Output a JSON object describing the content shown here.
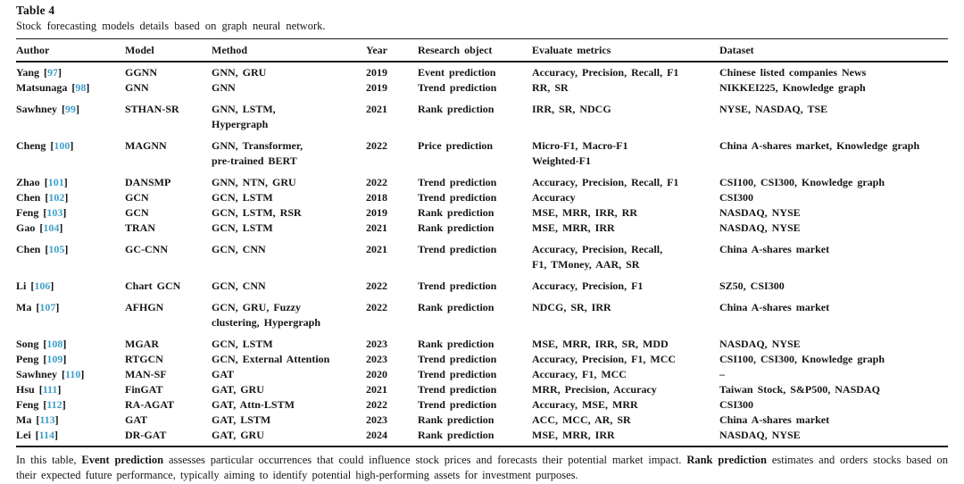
{
  "page": {
    "link_color": "#3d9fc9"
  },
  "table": {
    "title": "Table 4",
    "caption": "Stock forecasting models details based on graph neural network.",
    "columns": [
      "Author",
      "Model",
      "Method",
      "Year",
      "Research object",
      "Evaluate metrics",
      "Dataset"
    ],
    "rows": [
      {
        "author": "Yang",
        "ref": "97",
        "model": "GGNN",
        "method": "GNN, GRU",
        "year": "2019",
        "research_object": "Event prediction",
        "metrics": "Accuracy, Precision, Recall, F1",
        "dataset": "Chinese listed companies News",
        "gap_before": false
      },
      {
        "author": "Matsunaga",
        "ref": "98",
        "model": "GNN",
        "method": "GNN",
        "year": "2019",
        "research_object": "Trend prediction",
        "metrics": "RR, SR",
        "dataset": "NIKKEI225, Knowledge graph",
        "gap_before": false
      },
      {
        "author": "Sawhney",
        "ref": "99",
        "model": "STHAN-SR",
        "method": "GNN, LSTM,\nHypergraph",
        "year": "2021",
        "research_object": "Rank prediction",
        "metrics": "IRR, SR, NDCG",
        "dataset": "NYSE, NASDAQ, TSE",
        "gap_before": true
      },
      {
        "author": "Cheng",
        "ref": "100",
        "model": "MAGNN",
        "method": "GNN, Transformer,\npre-trained BERT",
        "year": "2022",
        "research_object": "Price prediction",
        "metrics": "Micro-F1, Macro-F1\nWeighted-F1",
        "dataset": "China A-shares market, Knowledge graph",
        "gap_before": true
      },
      {
        "author": "Zhao",
        "ref": "101",
        "model": "DANSMP",
        "method": "GNN, NTN, GRU",
        "year": "2022",
        "research_object": "Trend prediction",
        "metrics": "Accuracy, Precision, Recall, F1",
        "dataset": "CSI100, CSI300, Knowledge graph",
        "gap_before": true
      },
      {
        "author": "Chen",
        "ref": "102",
        "model": "GCN",
        "method": "GCN, LSTM",
        "year": "2018",
        "research_object": "Trend prediction",
        "metrics": "Accuracy",
        "dataset": "CSI300",
        "gap_before": false
      },
      {
        "author": "Feng",
        "ref": "103",
        "model": "GCN",
        "method": "GCN, LSTM, RSR",
        "year": "2019",
        "research_object": "Rank prediction",
        "metrics": "MSE, MRR, IRR, RR",
        "dataset": "NASDAQ, NYSE",
        "gap_before": false
      },
      {
        "author": "Gao",
        "ref": "104",
        "model": "TRAN",
        "method": "GCN, LSTM",
        "year": "2021",
        "research_object": "Rank prediction",
        "metrics": "MSE, MRR, IRR",
        "dataset": "NASDAQ, NYSE",
        "gap_before": false
      },
      {
        "author": "Chen",
        "ref": "105",
        "model": "GC-CNN",
        "method": "GCN, CNN",
        "year": "2021",
        "research_object": "Trend prediction",
        "metrics": "Accuracy, Precision, Recall,\nF1, TMoney, AAR, SR",
        "dataset": "China A-shares market",
        "gap_before": true
      },
      {
        "author": "Li",
        "ref": "106",
        "model": "Chart GCN",
        "method": "GCN, CNN",
        "year": "2022",
        "research_object": "Trend prediction",
        "metrics": "Accuracy, Precision, F1",
        "dataset": "SZ50, CSI300",
        "gap_before": true
      },
      {
        "author": "Ma",
        "ref": "107",
        "model": "AFHGN",
        "method": "GCN, GRU, Fuzzy\nclustering, Hypergraph",
        "year": "2022",
        "research_object": "Rank prediction",
        "metrics": "NDCG, SR, IRR",
        "dataset": "China A-shares market",
        "gap_before": true
      },
      {
        "author": "Song",
        "ref": "108",
        "model": "MGAR",
        "method": "GCN, LSTM",
        "year": "2023",
        "research_object": "Rank prediction",
        "metrics": "MSE, MRR, IRR, SR, MDD",
        "dataset": "NASDAQ, NYSE",
        "gap_before": true
      },
      {
        "author": "Peng",
        "ref": "109",
        "model": "RTGCN",
        "method": "GCN, External Attention",
        "year": "2023",
        "research_object": "Trend prediction",
        "metrics": "Accuracy, Precision, F1, MCC",
        "dataset": "CSI100, CSI300, Knowledge graph",
        "gap_before": false
      },
      {
        "author": "Sawhney",
        "ref": "110",
        "model": "MAN-SF",
        "method": "GAT",
        "year": "2020",
        "research_object": "Trend prediction",
        "metrics": "Accuracy, F1, MCC",
        "dataset": "–",
        "gap_before": false
      },
      {
        "author": "Hsu",
        "ref": "111",
        "model": "FinGAT",
        "method": "GAT, GRU",
        "year": "2021",
        "research_object": "Trend prediction",
        "metrics": "MRR, Precision, Accuracy",
        "dataset": "Taiwan Stock, S&P500, NASDAQ",
        "gap_before": false
      },
      {
        "author": "Feng",
        "ref": "112",
        "model": "RA-AGAT",
        "method": "GAT, Attn-LSTM",
        "year": "2022",
        "research_object": "Trend prediction",
        "metrics": "Accuracy, MSE, MRR",
        "dataset": "CSI300",
        "gap_before": false
      },
      {
        "author": "Ma",
        "ref": "113",
        "model": "GAT",
        "method": "GAT, LSTM",
        "year": "2023",
        "research_object": "Rank prediction",
        "metrics": "ACC, MCC, AR, SR",
        "dataset": "China A-shares market",
        "gap_before": false
      },
      {
        "author": "Lei",
        "ref": "114",
        "model": "DR-GAT",
        "method": "GAT, GRU",
        "year": "2024",
        "research_object": "Rank prediction",
        "metrics": "MSE, MRR, IRR",
        "dataset": "NASDAQ, NYSE",
        "gap_before": false
      }
    ],
    "footnote": [
      {
        "text": "In this table, ",
        "bold": false
      },
      {
        "text": "Event prediction",
        "bold": true
      },
      {
        "text": " assesses particular occurrences that could influence stock prices and forecasts their potential market impact. ",
        "bold": false
      },
      {
        "text": "Rank prediction",
        "bold": true
      },
      {
        "text": " estimates and orders stocks based on their expected future performance, typically aiming to identify potential high-performing assets for investment purposes.",
        "bold": false
      }
    ]
  }
}
